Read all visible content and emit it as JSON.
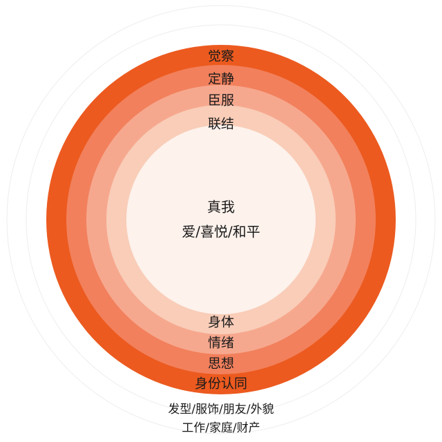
{
  "colors": {
    "background": "#ffffff",
    "guide_circle": "#ededed",
    "ring_outer": "#ec5a1f",
    "ring_2": "#f2805c",
    "ring_3": "#f6a88e",
    "ring_4": "#f9cdb8",
    "core": "#fdf2ec",
    "text": "#1a1a1a"
  },
  "core": {
    "title": "真我",
    "subtitle": "爱/喜悦/和平"
  },
  "upper_labels": {
    "ring_1": "觉察",
    "ring_2": "定静",
    "ring_3": "臣服",
    "ring_4": "联结"
  },
  "lower_labels": {
    "ring_4": "身体",
    "ring_3": "情绪",
    "ring_2": "思想",
    "ring_1": "身份认同"
  },
  "outer_labels": {
    "line_1": "发型/服饰/朋友/外貌",
    "line_2": "工作/家庭/财产"
  }
}
